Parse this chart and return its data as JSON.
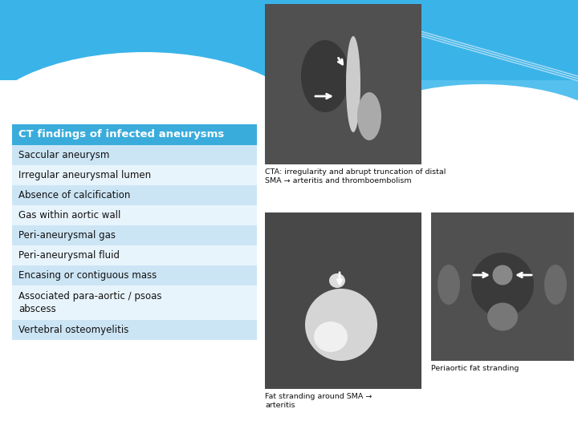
{
  "background_color": "#ffffff",
  "table_title": "CT findings of infected aneurysms",
  "table_title_bg": "#3aacdc",
  "table_title_color": "#ffffff",
  "table_rows": [
    {
      "text": "Saccular aneurysm",
      "bg": "#cce5f5"
    },
    {
      "text": "Irregular aneurysmal lumen",
      "bg": "#e8f4fc"
    },
    {
      "text": "Absence of calcification",
      "bg": "#cce5f5"
    },
    {
      "text": "Gas within aortic wall",
      "bg": "#e8f4fc"
    },
    {
      "text": "Peri-aneurysmal gas",
      "bg": "#cce5f5"
    },
    {
      "text": "Peri-aneurysmal fluid",
      "bg": "#e8f4fc"
    },
    {
      "text": "Encasing or contiguous mass",
      "bg": "#cce5f5"
    },
    {
      "text": "Associated para-aortic / psoas\nabscess",
      "bg": "#e8f4fc"
    },
    {
      "text": "Vertebral osteomyelitis",
      "bg": "#cce5f5"
    }
  ],
  "caption_top": "CTA: irregularity and abrupt truncation of distal\nSMA → arteritis and thromboembolism",
  "caption_bottom_left": "Fat stranding around SMA →\narteritis",
  "caption_bottom_right": "Periaortic fat stranding",
  "font_size_title": 9.5,
  "font_size_row": 8.5,
  "font_size_caption": 6.8,
  "header_blue": "#3ab4e8",
  "header_blue2": "#55c0ee",
  "header_blue3": "#7dd0f5",
  "lines_color": "#b8dff5"
}
